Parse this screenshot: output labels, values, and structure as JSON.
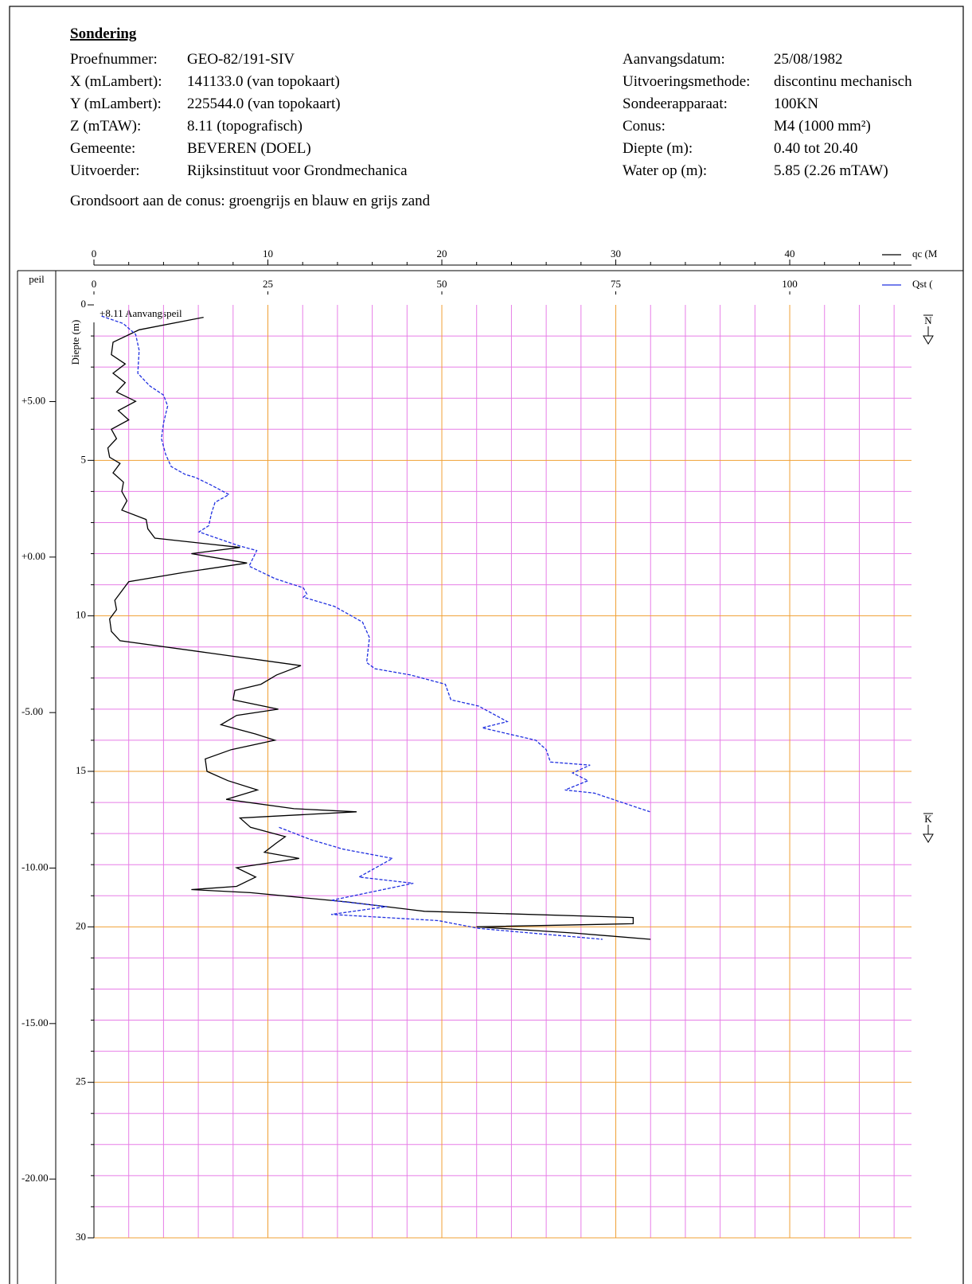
{
  "header": {
    "title": "Sondering",
    "left": [
      {
        "label": "Proefnummer:",
        "value": "GEO-82/191-SIV"
      },
      {
        "label": "X (mLambert):",
        "value": "141133.0 (van topokaart)"
      },
      {
        "label": "Y (mLambert):",
        "value": "225544.0 (van topokaart)"
      },
      {
        "label": "Z (mTAW):",
        "value": "8.11 (topografisch)"
      },
      {
        "label": "Gemeente:",
        "value": "BEVEREN (DOEL)"
      },
      {
        "label": "Uitvoerder:",
        "value": "Rijksinstituut voor Grondmechanica"
      }
    ],
    "right": [
      {
        "label": "Aanvangsdatum:",
        "value": "25/08/1982"
      },
      {
        "label": "Uitvoeringsmethode:",
        "value": "discontinu mechanisch"
      },
      {
        "label": "Sondeerapparaat:",
        "value": "100KN"
      },
      {
        "label": "Conus:",
        "value": "M4 (1000 mm²)"
      },
      {
        "label": "Diepte (m):",
        "value": "0.40 tot 20.40"
      },
      {
        "label": "Water op (m):",
        "value": "5.85   (2.26 mTAW)"
      }
    ],
    "soil": "Grondsoort aan de conus: groengrijs en blauw en grijs zand"
  },
  "chart_data": {
    "type": "line",
    "ylabel": "Diepte (m)",
    "y2label": "peil",
    "annotation": "+8.11 Aanvangspeil",
    "xlim": [
      0,
      47
    ],
    "xticks": [
      0,
      10,
      20,
      30,
      40
    ],
    "xminorticks": [
      2,
      4,
      6,
      8,
      12,
      14,
      16,
      18,
      22,
      24,
      26,
      28,
      32,
      34,
      36,
      38,
      42,
      44,
      46
    ],
    "x2lim": [
      0,
      117.5
    ],
    "x2ticks": [
      0,
      25,
      50,
      75,
      100
    ],
    "ylim": [
      0,
      30
    ],
    "yticks": [
      0,
      5,
      10,
      15,
      20,
      25,
      30
    ],
    "yminorticks": [
      1,
      2,
      3,
      4,
      6,
      7,
      8,
      9,
      11,
      12,
      13,
      14,
      16,
      17,
      18,
      19,
      21,
      22,
      23,
      24,
      26,
      27,
      28,
      29
    ],
    "y2lim": [
      8.11,
      -21.89
    ],
    "y2ticks": [
      {
        "value": 5,
        "label": "+5.00"
      },
      {
        "value": 0,
        "label": "+0.00"
      },
      {
        "value": -5,
        "label": "-5.00"
      },
      {
        "value": -10,
        "label": "-10.00"
      },
      {
        "value": -15,
        "label": "-15.00"
      },
      {
        "value": -20,
        "label": "-20.00"
      }
    ],
    "markers": [
      "N",
      "K"
    ],
    "grid": true,
    "series": [
      {
        "name": "qc (M",
        "color": "#000000",
        "dashed": false,
        "axis": "x",
        "depth": [
          0.4,
          0.8,
          1.2,
          1.6,
          1.9,
          2.2,
          2.5,
          2.8,
          3.1,
          3.4,
          3.7,
          4.0,
          4.3,
          4.6,
          4.9,
          5.1,
          5.4,
          5.7,
          6.0,
          6.3,
          6.6,
          6.9,
          7.2,
          7.5,
          7.8,
          8.0,
          8.3,
          8.6,
          8.9,
          9.2,
          9.5,
          9.8,
          10.1,
          10.5,
          10.8,
          11.2,
          11.6,
          11.9,
          12.2,
          12.4,
          12.7,
          13.0,
          13.2,
          13.5,
          13.8,
          14.0,
          14.3,
          14.6,
          15.0,
          15.3,
          15.6,
          15.9,
          16.2,
          16.3,
          16.5,
          16.8,
          17.1,
          17.3,
          17.6,
          17.8,
          18.1,
          18.4,
          18.7,
          18.8,
          18.9,
          19.2,
          19.5,
          19.7,
          19.9,
          20.0,
          20.2,
          20.4
        ],
        "values": [
          6.3,
          2.6,
          1.1,
          1.0,
          1.8,
          1.1,
          1.8,
          1.3,
          2.4,
          1.4,
          2.0,
          1.0,
          1.3,
          0.8,
          0.9,
          1.5,
          1.1,
          1.7,
          1.6,
          1.9,
          1.6,
          3.0,
          3.1,
          3.5,
          8.4,
          5.6,
          8.8,
          5.2,
          2.0,
          1.6,
          1.2,
          1.3,
          0.9,
          1.0,
          1.5,
          6.7,
          11.9,
          10.5,
          9.6,
          8.1,
          8.0,
          10.6,
          8.2,
          7.3,
          9.3,
          10.4,
          7.9,
          6.4,
          6.5,
          7.7,
          9.4,
          7.6,
          11.5,
          15.1,
          8.4,
          9.0,
          11.0,
          10.5,
          9.8,
          11.8,
          8.2,
          9.3,
          8.2,
          5.6,
          9.0,
          14.6,
          19.0,
          31.0,
          31.0,
          22.0,
          27.6,
          32.0
        ]
      },
      {
        "name": "Qst (",
        "color": "#2030e0",
        "dashed": true,
        "axis": "x2",
        "depth": [
          0.36,
          0.6,
          0.95,
          1.46,
          2.2,
          2.6,
          2.9,
          3.25,
          3.8,
          4.3,
          4.8,
          5.2,
          5.45,
          5.55,
          5.8,
          6.1,
          6.35,
          6.7,
          7.1,
          7.3,
          7.75,
          7.9,
          8.4,
          8.8,
          9.1,
          9.3,
          9.4,
          9.7,
          10.2,
          10.7,
          11.5,
          11.7,
          11.9,
          12.2,
          12.7,
          12.9,
          13.4,
          13.6,
          14.0,
          14.3,
          14.7,
          14.8,
          15.05,
          15.3,
          15.6,
          15.7,
          16.3,
          null,
          16.8,
          17.2,
          17.5,
          17.8,
          18.4,
          18.6,
          19.15,
          19.35,
          19.6,
          19.8,
          20.05,
          20.4
        ],
        "values": [
          1.1,
          4.2,
          6.0,
          6.5,
          6.3,
          8.0,
          10.0,
          10.6,
          10.0,
          9.7,
          10.3,
          11.1,
          13.1,
          14.6,
          16.9,
          19.4,
          17.4,
          16.9,
          16.5,
          15.1,
          20.9,
          23.4,
          22.3,
          26.0,
          30.1,
          30.6,
          30.1,
          34.6,
          38.6,
          39.6,
          39.2,
          40.4,
          45.5,
          50.5,
          51.3,
          55.3,
          59.4,
          55.8,
          63.5,
          65.0,
          65.6,
          71.3,
          68.8,
          71.0,
          67.7,
          71.9,
          79.9,
          null,
          26.6,
          31.2,
          35.8,
          42.9,
          38.1,
          45.9,
          34.1,
          42.1,
          34.1,
          49.5,
          55.3,
          73.1
        ]
      }
    ]
  }
}
